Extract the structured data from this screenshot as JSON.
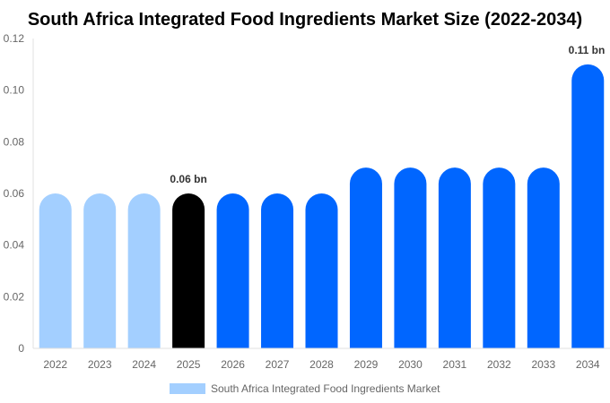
{
  "chart_data": {
    "type": "bar",
    "title": "South Africa Integrated Food Ingredients Market Size (2022-2034)",
    "xlabel": "",
    "ylabel": "",
    "ylim": [
      0,
      0.12
    ],
    "yticks": [
      "0",
      "0.02",
      "0.04",
      "0.06",
      "0.08",
      "0.10",
      "0.12"
    ],
    "categories": [
      "2022",
      "2023",
      "2024",
      "2025",
      "2026",
      "2027",
      "2028",
      "2029",
      "2030",
      "2031",
      "2032",
      "2033",
      "2034"
    ],
    "series": [
      {
        "name": "South Africa Integrated Food Ingredients Market",
        "values": [
          0.06,
          0.06,
          0.06,
          0.06,
          0.06,
          0.06,
          0.06,
          0.07,
          0.07,
          0.07,
          0.07,
          0.07,
          0.11
        ]
      }
    ],
    "bar_colors": [
      "#a3cfff",
      "#a3cfff",
      "#a3cfff",
      "#000000",
      "#0066ff",
      "#0066ff",
      "#0066ff",
      "#0066ff",
      "#0066ff",
      "#0066ff",
      "#0066ff",
      "#0066ff",
      "#0066ff"
    ],
    "data_labels": [
      {
        "category": "2025",
        "text": "0.06 bn"
      },
      {
        "category": "2034",
        "text": "0.11 bn"
      }
    ],
    "legend": {
      "placement": "bottom",
      "color": "#a3cfff"
    },
    "grid": false
  }
}
